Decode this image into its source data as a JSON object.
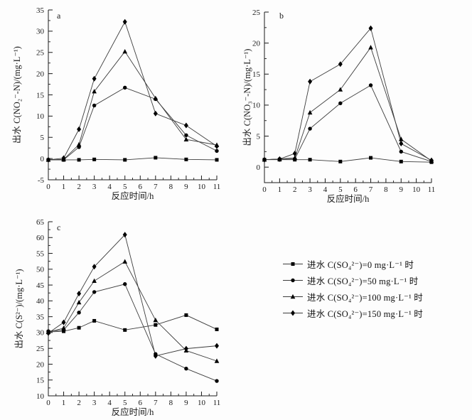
{
  "figure": {
    "background": "#fdfdfd",
    "ink_color": "#1a1a1a",
    "series_line_color": "#3c3c3c",
    "marker_color": "#000000"
  },
  "chart_data": [
    {
      "id": "a",
      "type": "line",
      "panel_label": "a",
      "xlabel": "反应时间/h",
      "ylabel": "出水 C(NO₂⁻-N)/(mg·L⁻¹)",
      "xlim": [
        0,
        11
      ],
      "ylim": [
        -5,
        35
      ],
      "xticks": [
        0,
        1,
        2,
        3,
        4,
        5,
        6,
        7,
        8,
        9,
        10,
        11
      ],
      "yticks": [
        -5,
        0,
        5,
        10,
        15,
        20,
        25,
        30,
        35
      ],
      "x_minor_step": 0.5,
      "y_minor_step": 2.5,
      "grid": false,
      "legend_position": "none",
      "x": [
        0,
        1,
        2,
        3,
        5,
        7,
        9,
        11
      ],
      "series": [
        {
          "name": "进水 C(SO₄²⁻)=0 mg·L⁻¹ 时",
          "marker": "square",
          "values": [
            -0.3,
            -0.3,
            -0.3,
            -0.2,
            -0.3,
            0.2,
            -0.2,
            -0.3
          ]
        },
        {
          "name": "进水 C(SO₄²⁻)=50 mg·L⁻¹ 时",
          "marker": "circle",
          "values": [
            -0.3,
            -0.3,
            2.7,
            12.5,
            16.7,
            14.0,
            5.5,
            1.8
          ]
        },
        {
          "name": "进水 C(SO₄²⁻)=100 mg·L⁻¹ 时",
          "marker": "triangle",
          "values": [
            -0.3,
            -0.2,
            3.3,
            15.8,
            25.2,
            14.2,
            4.5,
            3.2
          ]
        },
        {
          "name": "进水 C(SO₄²⁻)=150 mg·L⁻¹ 时",
          "marker": "diamond",
          "values": [
            -0.3,
            0.1,
            6.9,
            18.8,
            32.2,
            10.6,
            7.8,
            2.9
          ]
        }
      ]
    },
    {
      "id": "b",
      "type": "line",
      "panel_label": "b",
      "xlabel": "反应时间/h",
      "ylabel": "出水 C(NO₃⁻-N)/(mg·L⁻¹)",
      "xlim": [
        0,
        11
      ],
      "ylim": [
        -2.5,
        25
      ],
      "xticks": [
        0,
        1,
        2,
        3,
        4,
        5,
        6,
        7,
        8,
        9,
        10,
        11
      ],
      "yticks": [
        0,
        5,
        10,
        15,
        20,
        25
      ],
      "x_minor_step": 0.5,
      "y_minor_step": 2.5,
      "grid": false,
      "legend_position": "none",
      "x": [
        0,
        1,
        2,
        3,
        5,
        7,
        9,
        11
      ],
      "series": [
        {
          "name": "进水 C(SO₄²⁻)=0 mg·L⁻¹ 时",
          "marker": "square",
          "values": [
            1.2,
            1.2,
            1.2,
            1.2,
            0.9,
            1.5,
            0.9,
            0.8
          ]
        },
        {
          "name": "进水 C(SO₄²⁻)=50 mg·L⁻¹ 时",
          "marker": "circle",
          "values": [
            1.2,
            1.3,
            1.3,
            6.2,
            10.3,
            13.2,
            2.5,
            0.9
          ]
        },
        {
          "name": "进水 C(SO₄²⁻)=100 mg·L⁻¹ 时",
          "marker": "triangle",
          "values": [
            1.2,
            1.3,
            1.5,
            8.8,
            12.5,
            19.3,
            4.5,
            1.0
          ]
        },
        {
          "name": "进水 C(SO₄²⁻)=150 mg·L⁻¹ 时",
          "marker": "diamond",
          "values": [
            1.2,
            1.3,
            2.2,
            13.8,
            16.6,
            22.4,
            3.8,
            1.1
          ]
        }
      ]
    },
    {
      "id": "c",
      "type": "line",
      "panel_label": "c",
      "xlabel": "反应时间/h",
      "ylabel": "出水 C(S²⁻)/(mg·L⁻¹)",
      "xlim": [
        0,
        11
      ],
      "ylim": [
        10,
        65
      ],
      "xticks": [
        0,
        1,
        2,
        3,
        4,
        5,
        6,
        7,
        8,
        9,
        10,
        11
      ],
      "yticks": [
        10,
        15,
        20,
        25,
        30,
        35,
        40,
        45,
        50,
        55,
        60,
        65
      ],
      "x_minor_step": 0.5,
      "y_minor_step": 2.5,
      "grid": false,
      "legend_position": "none",
      "x": [
        0,
        1,
        2,
        3,
        5,
        7,
        9,
        11
      ],
      "series": [
        {
          "name": "进水 C(SO₄²⁻)=0 mg·L⁻¹ 时",
          "marker": "square",
          "values": [
            30.2,
            30.4,
            31.5,
            33.7,
            30.8,
            32.4,
            35.5,
            31.0
          ]
        },
        {
          "name": "进水 C(SO₄²⁻)=50 mg·L⁻¹ 时",
          "marker": "circle",
          "values": [
            30.4,
            30.8,
            36.3,
            42.8,
            45.3,
            23.2,
            18.6,
            14.7
          ]
        },
        {
          "name": "进水 C(SO₄²⁻)=100 mg·L⁻¹ 时",
          "marker": "triangle",
          "values": [
            30.1,
            31.4,
            39.5,
            46.3,
            52.4,
            33.9,
            24.3,
            21.0
          ]
        },
        {
          "name": "进水 C(SO₄²⁻)=150 mg·L⁻¹ 时",
          "marker": "diamond",
          "values": [
            29.8,
            33.2,
            42.3,
            50.8,
            60.9,
            22.6,
            24.9,
            25.8
          ]
        }
      ]
    }
  ],
  "legend": {
    "items": [
      {
        "marker": "square",
        "label": "进水 C(SO₄²⁻)=0 mg·L⁻¹ 时"
      },
      {
        "marker": "circle",
        "label": "进水 C(SO₄²⁻)=50 mg·L⁻¹ 时"
      },
      {
        "marker": "triangle",
        "label": "进水 C(SO₄²⁻)=100 mg·L⁻¹ 时"
      },
      {
        "marker": "diamond",
        "label": "进水 C(SO₄²⁻)=150 mg·L⁻¹ 时"
      }
    ]
  }
}
